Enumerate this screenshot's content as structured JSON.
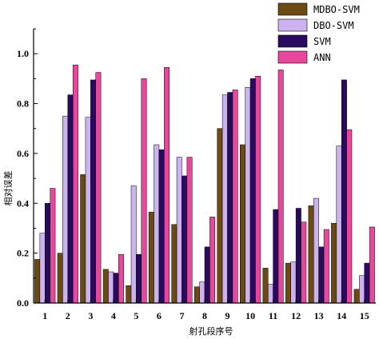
{
  "chart_data": {
    "type": "bar",
    "xlabel": "射孔段序号",
    "ylabel": "相对误差",
    "ylim": [
      0,
      1.1
    ],
    "yticks": [
      "0.0",
      "0.2",
      "0.4",
      "0.6",
      "0.8",
      "1.0"
    ],
    "categories": [
      "1",
      "2",
      "3",
      "4",
      "5",
      "6",
      "7",
      "8",
      "9",
      "10",
      "11",
      "12",
      "13",
      "14",
      "15"
    ],
    "legend_position": "top-right",
    "series": [
      {
        "name": "MDBO-SVM",
        "color": "#6b4a14",
        "values": [
          0.175,
          0.2,
          0.515,
          0.135,
          0.07,
          0.365,
          0.315,
          0.065,
          0.7,
          0.635,
          0.14,
          0.16,
          0.39,
          0.32,
          0.055
        ]
      },
      {
        "name": "DBO-SVM",
        "color": "#ccb3f0",
        "values": [
          0.28,
          0.75,
          0.745,
          0.125,
          0.47,
          0.635,
          0.585,
          0.085,
          0.835,
          0.865,
          0.075,
          0.165,
          0.42,
          0.63,
          0.11
        ]
      },
      {
        "name": "SVM",
        "color": "#2a0a5e",
        "values": [
          0.4,
          0.835,
          0.895,
          0.12,
          0.195,
          0.615,
          0.51,
          0.225,
          0.845,
          0.9,
          0.375,
          0.38,
          0.225,
          0.895,
          0.16
        ]
      },
      {
        "name": "ANN",
        "color": "#e8489c",
        "values": [
          0.46,
          0.955,
          0.925,
          0.195,
          0.9,
          0.945,
          0.585,
          0.345,
          0.855,
          0.91,
          0.935,
          0.325,
          0.295,
          0.695,
          0.305
        ]
      }
    ]
  }
}
